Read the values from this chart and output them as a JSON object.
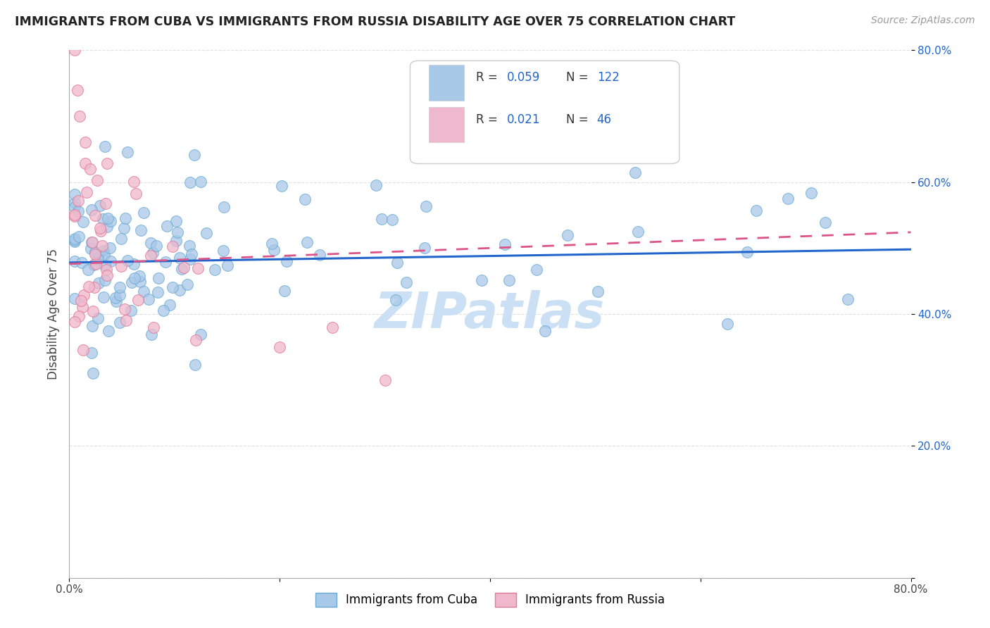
{
  "title": "IMMIGRANTS FROM CUBA VS IMMIGRANTS FROM RUSSIA DISABILITY AGE OVER 75 CORRELATION CHART",
  "source": "Source: ZipAtlas.com",
  "ylabel": "Disability Age Over 75",
  "xlim": [
    0.0,
    0.8
  ],
  "ylim": [
    0.0,
    0.8
  ],
  "cuba_color": "#a8c8e8",
  "cuba_edge_color": "#6aaad4",
  "russia_color": "#f0b8cc",
  "russia_edge_color": "#e07898",
  "cuba_line_color": "#2266cc",
  "russia_line_color": "#dd5588",
  "title_color": "#222222",
  "source_color": "#999999",
  "axis_color": "#cccccc",
  "grid_color": "#e0e0e0",
  "legend_text_color": "#2266cc",
  "background_color": "#ffffff",
  "watermark": "ZIPatlas",
  "watermark_color": "#cce0f5",
  "cuba_line_y0": 0.478,
  "cuba_line_y1": 0.498,
  "russia_line_y0": 0.476,
  "russia_line_y1": 0.524
}
